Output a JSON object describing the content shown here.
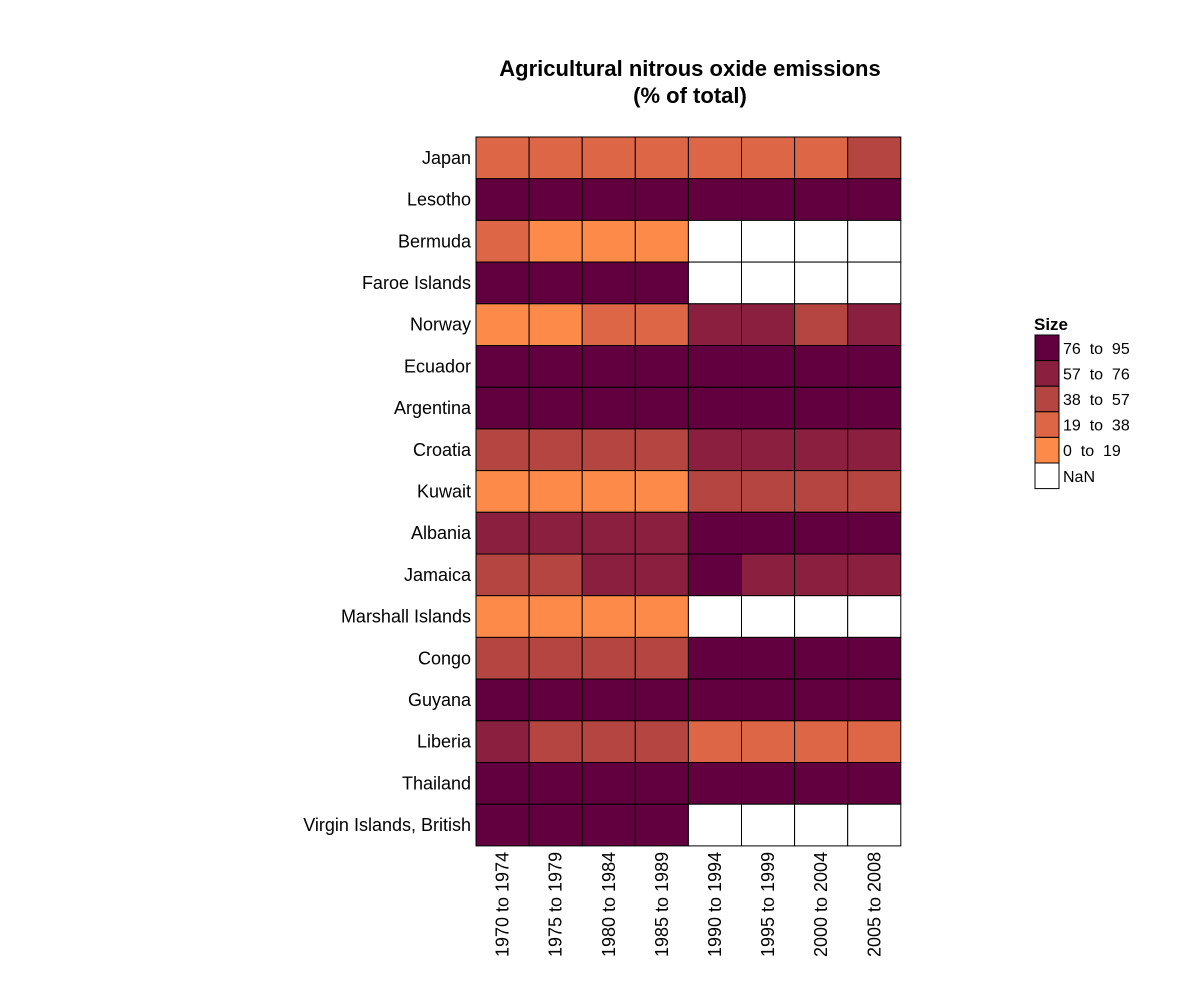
{
  "chart_data": {
    "type": "heatmap",
    "title": [
      "Agricultural nitrous oxide emissions",
      "(% of total)"
    ],
    "columns": [
      "1970 to 1974",
      "1975 to 1979",
      "1980 to 1984",
      "1985 to 1989",
      "1990 to 1994",
      "1995 to 1999",
      "2000 to 2004",
      "2005 to 2008"
    ],
    "rows": [
      "Japan",
      "Lesotho",
      "Bermuda",
      "Faroe Islands",
      "Norway",
      "Ecuador",
      "Argentina",
      "Croatia",
      "Kuwait",
      "Albania",
      "Jamaica",
      "Marshall Islands",
      "Congo",
      "Guyana",
      "Liberia",
      "Thailand",
      "Virgin Islands, British"
    ],
    "bin_matrix": [
      [
        3,
        3,
        3,
        3,
        3,
        3,
        3,
        2
      ],
      [
        0,
        0,
        0,
        0,
        0,
        0,
        0,
        0
      ],
      [
        3,
        4,
        4,
        4,
        5,
        5,
        5,
        5
      ],
      [
        0,
        0,
        0,
        0,
        5,
        5,
        5,
        5
      ],
      [
        4,
        4,
        3,
        3,
        1,
        1,
        2,
        1
      ],
      [
        0,
        0,
        0,
        0,
        0,
        0,
        0,
        0
      ],
      [
        0,
        0,
        0,
        0,
        0,
        0,
        0,
        0
      ],
      [
        2,
        2,
        2,
        2,
        1,
        1,
        1,
        1
      ],
      [
        4,
        4,
        4,
        4,
        2,
        2,
        2,
        2
      ],
      [
        1,
        1,
        1,
        1,
        0,
        0,
        0,
        0
      ],
      [
        2,
        2,
        1,
        1,
        0,
        1,
        1,
        1
      ],
      [
        4,
        4,
        4,
        4,
        5,
        5,
        5,
        5
      ],
      [
        2,
        2,
        2,
        2,
        0,
        0,
        0,
        0
      ],
      [
        0,
        0,
        0,
        0,
        0,
        0,
        0,
        0
      ],
      [
        1,
        2,
        2,
        2,
        3,
        3,
        3,
        3
      ],
      [
        0,
        0,
        0,
        0,
        0,
        0,
        0,
        0
      ],
      [
        0,
        0,
        0,
        0,
        5,
        5,
        5,
        5
      ]
    ],
    "bins": [
      {
        "label": "76  to  95",
        "color": "#62003f"
      },
      {
        "label": "57  to  76",
        "color": "#8a1f3f"
      },
      {
        "label": "38  to  57",
        "color": "#b44540"
      },
      {
        "label": "19  to  38",
        "color": "#dc6646"
      },
      {
        "label": "0  to  19",
        "color": "#fe8a4a"
      },
      {
        "label": "NaN",
        "color": "#ffffff"
      }
    ],
    "legend_title": "Size",
    "legend_position": "right",
    "grid": true
  }
}
